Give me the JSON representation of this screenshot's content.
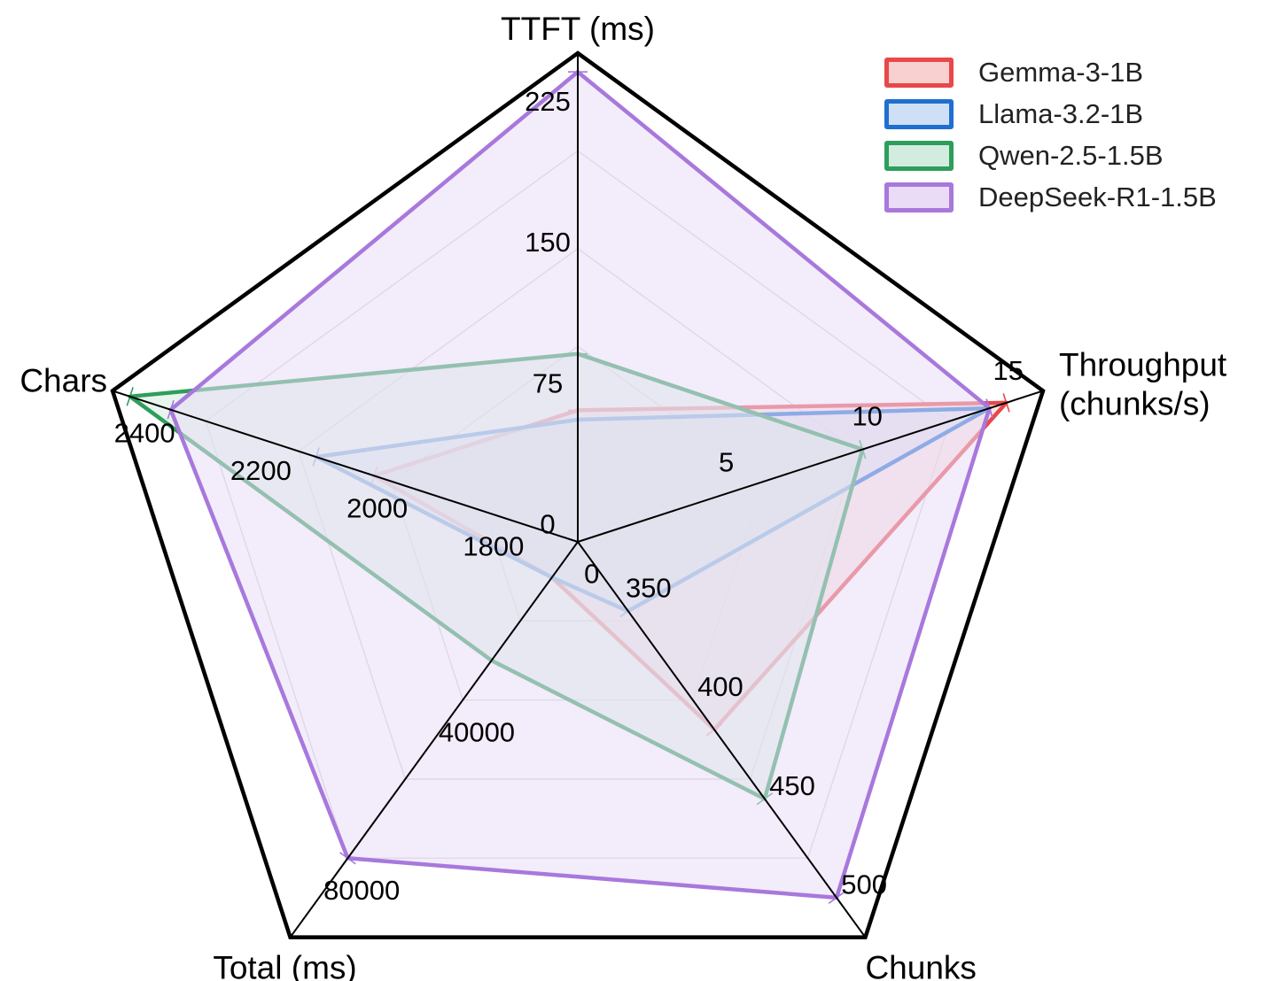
{
  "chart_data": {
    "type": "radar",
    "axes": [
      {
        "label": "TTFT (ms)",
        "range": [
          0,
          260
        ],
        "ticks": [
          0,
          75,
          150,
          225
        ]
      },
      {
        "label": "Throughput\n(chunks/s)",
        "range": [
          0,
          16.5
        ],
        "ticks": [
          5,
          10,
          15
        ]
      },
      {
        "label": "Chunks",
        "range": [
          325,
          525
        ],
        "ticks": [
          350,
          400,
          450,
          500
        ]
      },
      {
        "label": "Total (ms)",
        "range": [
          0,
          100000
        ],
        "ticks": [
          0,
          40000,
          80000
        ]
      },
      {
        "label": "Chars",
        "range": [
          1700,
          2500
        ],
        "ticks": [
          1800,
          2000,
          2200,
          2400
        ]
      }
    ],
    "series": [
      {
        "name": "Gemma-3-1B",
        "color": "#e8484a",
        "fill": "#f8d0d0",
        "values": [
          70,
          15.2,
          420,
          9000,
          2050
        ]
      },
      {
        "label_note": "",
        "name": "Llama-3.2-1B",
        "color": "#1f6fd1",
        "fill": "#cfe0f6",
        "values": [
          65,
          14.6,
          360,
          9000,
          2150
        ]
      },
      {
        "name": "Qwen-2.5-1.5B",
        "color": "#2e9e5b",
        "fill": "#d3ece0",
        "values": [
          100,
          10.1,
          455,
          30000,
          2470
        ]
      },
      {
        "name": "DeepSeek-R1-1.5B",
        "color": "#a878dc",
        "fill": "#eadcf6",
        "values": [
          250,
          14.6,
          505,
          80000,
          2400
        ]
      }
    ],
    "legend_position": "top-right",
    "grid": true
  }
}
